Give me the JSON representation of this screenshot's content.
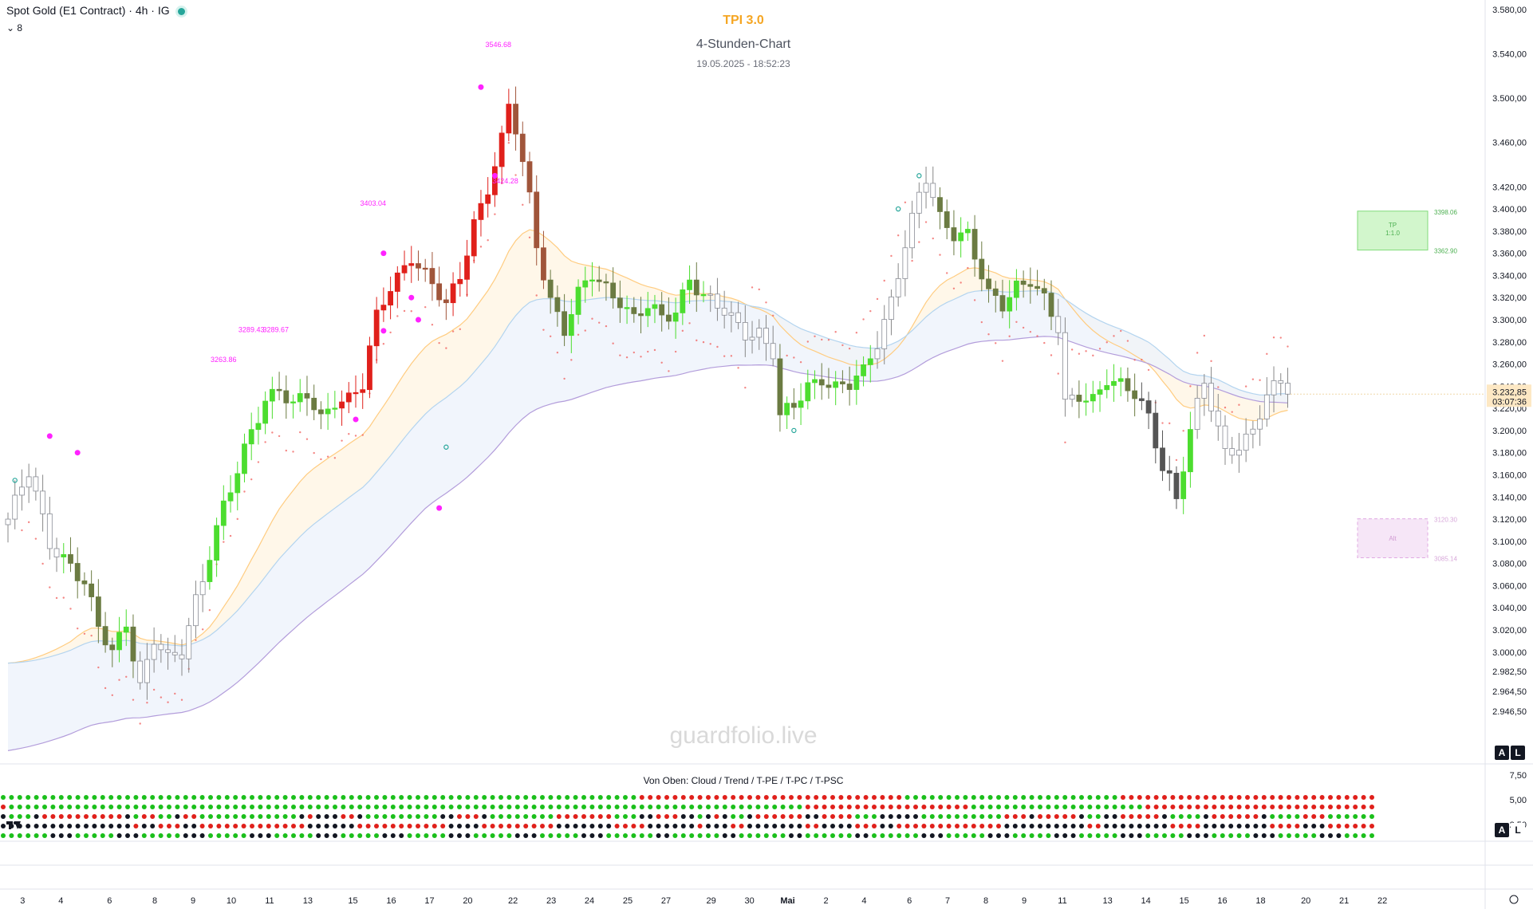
{
  "header": {
    "symbol": "Spot Gold (E1 Contract) · 4h · IG",
    "indicator_count": "8",
    "title": "TPI 3.0",
    "subtitle": "4-Stunden-Chart",
    "timestamp": "19.05.2025 - 18:52:23",
    "watermark": "guardfolio.live"
  },
  "colors": {
    "bull_strong": "#4cdd2f",
    "bull_weak": "#6b7b42",
    "bear_strong": "#e0201b",
    "bear_weak": "#a0553a",
    "neutral": "#b2b5be",
    "accent_title": "#f5a623",
    "magenta": "#ff22ff",
    "psar": "#ef5350"
  },
  "chart_data": [
    {
      "type": "candlestick",
      "ylim": [
        2930,
        3580
      ],
      "y_ticks": [
        "3.580,00",
        "3.540,00",
        "3.500,00",
        "3.460,00",
        "3.420,00",
        "3.400,00",
        "3.380,00",
        "3.360,00",
        "3.340,00",
        "3.320,00",
        "3.300,00",
        "3.280,00",
        "3.260,00",
        "3.240,00",
        "3.220,00",
        "3.200,00",
        "3.180,00",
        "3.160,00",
        "3.140,00",
        "3.120,00",
        "3.100,00",
        "3.080,00",
        "3.060,00",
        "3.040,00",
        "3.020,00",
        "3.000,00",
        "2.982,50",
        "2.964,50",
        "2.946,50"
      ],
      "x_ticks": [
        {
          "label": "3",
          "bar": 0.5
        },
        {
          "label": "4",
          "bar": 6
        },
        {
          "label": "6",
          "bar": 13
        },
        {
          "label": "8",
          "bar": 19.5
        },
        {
          "label": "9",
          "bar": 25
        },
        {
          "label": "10",
          "bar": 30.5
        },
        {
          "label": "11",
          "bar": 36
        },
        {
          "label": "13",
          "bar": 41.5
        },
        {
          "label": "15",
          "bar": 48
        },
        {
          "label": "16",
          "bar": 53.5
        },
        {
          "label": "17",
          "bar": 59
        },
        {
          "label": "20",
          "bar": 64.5
        },
        {
          "label": "22",
          "bar": 71
        },
        {
          "label": "23",
          "bar": 76.5
        },
        {
          "label": "24",
          "bar": 82
        },
        {
          "label": "25",
          "bar": 87.5
        },
        {
          "label": "27",
          "bar": 93
        },
        {
          "label": "29",
          "bar": 99.5
        },
        {
          "label": "30",
          "bar": 105
        },
        {
          "label": "Mai",
          "bar": 110.5
        },
        {
          "label": "2",
          "bar": 116
        },
        {
          "label": "4",
          "bar": 121.5
        },
        {
          "label": "6",
          "bar": 128
        },
        {
          "label": "7",
          "bar": 133.5
        },
        {
          "label": "8",
          "bar": 139
        },
        {
          "label": "9",
          "bar": 144.5
        },
        {
          "label": "11",
          "bar": 150
        },
        {
          "label": "13",
          "bar": 156.5
        },
        {
          "label": "14",
          "bar": 162
        },
        {
          "label": "15",
          "bar": 167.5
        },
        {
          "label": "16",
          "bar": 173
        },
        {
          "label": "18",
          "bar": 178.5
        },
        {
          "label": "20",
          "bar": 185
        },
        {
          "label": "21",
          "bar": 190.5
        },
        {
          "label": "22",
          "bar": 196
        },
        {
          "label": "",
          "bar": 201.5
        }
      ],
      "anchors": [
        [
          0,
          3120
        ],
        [
          3,
          3160
        ],
        [
          6,
          3100
        ],
        [
          9,
          3080
        ],
        [
          11,
          3060
        ],
        [
          13,
          3020
        ],
        [
          15,
          3000
        ],
        [
          17,
          3030
        ],
        [
          19,
          2970
        ],
        [
          21,
          3010
        ],
        [
          23,
          2990
        ],
        [
          25,
          3000
        ],
        [
          27,
          3050
        ],
        [
          29,
          3090
        ],
        [
          31,
          3130
        ],
        [
          33,
          3160
        ],
        [
          35,
          3200
        ],
        [
          37,
          3230
        ],
        [
          39,
          3240
        ],
        [
          41,
          3220
        ],
        [
          43,
          3230
        ],
        [
          45,
          3210
        ],
        [
          47,
          3230
        ],
        [
          49,
          3230
        ],
        [
          51,
          3240
        ],
        [
          53,
          3300
        ],
        [
          55,
          3330
        ],
        [
          57,
          3350
        ],
        [
          58,
          3360
        ],
        [
          59,
          3350
        ],
        [
          61,
          3330
        ],
        [
          63,
          3310
        ],
        [
          65,
          3340
        ],
        [
          67,
          3390
        ],
        [
          69,
          3420
        ],
        [
          71,
          3460
        ],
        [
          72,
          3490
        ],
        [
          73,
          3470
        ],
        [
          74,
          3440
        ],
        [
          75,
          3410
        ],
        [
          76,
          3370
        ],
        [
          78,
          3320
        ],
        [
          80,
          3290
        ],
        [
          82,
          3320
        ],
        [
          84,
          3340
        ],
        [
          86,
          3330
        ],
        [
          88,
          3320
        ],
        [
          90,
          3300
        ],
        [
          92,
          3310
        ],
        [
          94,
          3300
        ],
        [
          96,
          3310
        ],
        [
          98,
          3340
        ],
        [
          100,
          3320
        ],
        [
          102,
          3310
        ],
        [
          104,
          3300
        ],
        [
          106,
          3290
        ],
        [
          108,
          3290
        ],
        [
          110,
          3270
        ],
        [
          111,
          3210
        ],
        [
          113,
          3220
        ],
        [
          115,
          3240
        ],
        [
          117,
          3250
        ],
        [
          119,
          3240
        ],
        [
          121,
          3240
        ],
        [
          123,
          3250
        ],
        [
          125,
          3280
        ],
        [
          127,
          3320
        ],
        [
          129,
          3370
        ],
        [
          131,
          3410
        ],
        [
          132,
          3425
        ],
        [
          134,
          3390
        ],
        [
          136,
          3380
        ],
        [
          138,
          3380
        ],
        [
          139,
          3360
        ],
        [
          141,
          3320
        ],
        [
          143,
          3310
        ],
        [
          145,
          3330
        ],
        [
          147,
          3340
        ],
        [
          149,
          3320
        ],
        [
          151,
          3290
        ],
        [
          152,
          3220
        ],
        [
          154,
          3230
        ],
        [
          156,
          3230
        ],
        [
          158,
          3250
        ],
        [
          160,
          3240
        ],
        [
          162,
          3230
        ],
        [
          164,
          3210
        ],
        [
          166,
          3170
        ],
        [
          167,
          3160
        ],
        [
          168,
          3140
        ],
        [
          170,
          3200
        ],
        [
          172,
          3240
        ],
        [
          173,
          3220
        ],
        [
          175,
          3180
        ],
        [
          177,
          3190
        ],
        [
          179,
          3200
        ],
        [
          181,
          3230
        ],
        [
          183,
          3240
        ],
        [
          184,
          3232.85
        ]
      ],
      "price_label": "3.232,85",
      "countdown": "03:07:36",
      "annotations": [
        {
          "text": "3546.68",
          "bar": 70.5,
          "price": 3546
        },
        {
          "text": "3424.28",
          "bar": 71.5,
          "price": 3423
        },
        {
          "text": "3403.04",
          "bar": 52.5,
          "price": 3403
        },
        {
          "text": "3289.43",
          "bar": 35,
          "price": 3289
        },
        {
          "text": "3289.67",
          "bar": 38.5,
          "price": 3289
        },
        {
          "text": "3263.86",
          "bar": 31,
          "price": 3262
        }
      ],
      "tp_box": {
        "label": "TP",
        "ratio": "1:1.0",
        "upper": "3398.06",
        "lower": "3362.90"
      },
      "alt_box": {
        "label": "Alt",
        "upper": "3120.30",
        "lower": "3085.14"
      },
      "scale_buttons": [
        "A",
        "L"
      ]
    },
    {
      "type": "dot_matrix",
      "title": "Von Oben: Cloud / Trend / T-PE / T-PC / T-PSC",
      "rows": [
        "Cloud",
        "Trend",
        "T-PE",
        "T-PC",
        "T-PSC"
      ],
      "y_ticks": [
        "7,50",
        "5,00",
        "2,50"
      ],
      "scale_buttons": [
        "A",
        "L"
      ]
    }
  ]
}
